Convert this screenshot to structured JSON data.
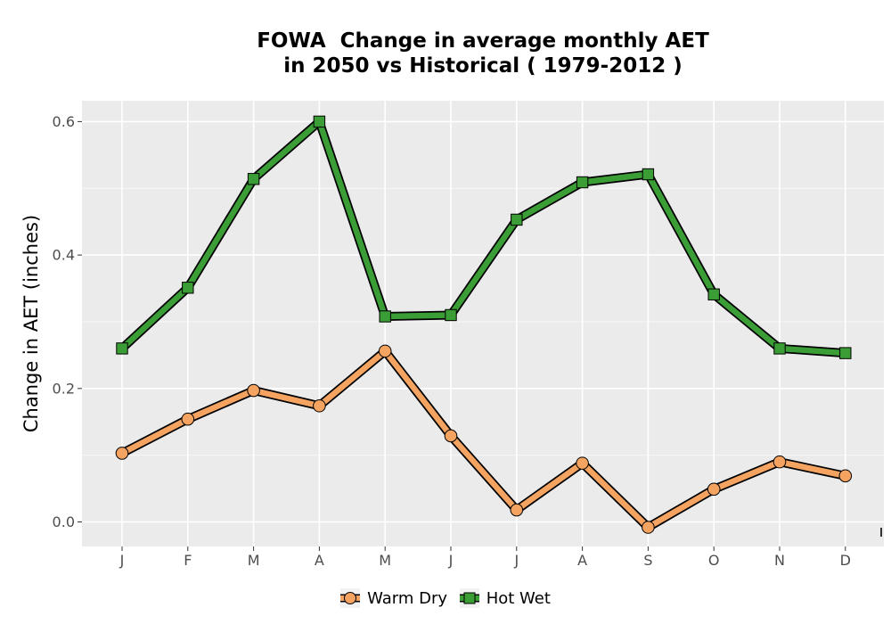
{
  "chart_data": {
    "type": "line",
    "title": [
      "FOWA  Change in average monthly AET",
      "in 2050 vs Historical ( 1979-2012 )"
    ],
    "xlabel": "",
    "ylabel": "Change in AET (inches)",
    "categories": [
      "J",
      "F",
      "M",
      "A",
      "M",
      "J",
      "J",
      "A",
      "S",
      "O",
      "N",
      "D"
    ],
    "ylim": [
      -0.04,
      0.63
    ],
    "yticks": [
      0.0,
      0.2,
      0.4,
      0.6
    ],
    "ytick_labels": [
      "0.0",
      "0.2",
      "0.4",
      "0.6"
    ],
    "grid": true,
    "legend_position": "bottom",
    "series": [
      {
        "name": "Warm Dry",
        "marker": "circle",
        "color": "#F4A460",
        "values": [
          0.103,
          0.154,
          0.197,
          0.174,
          0.256,
          0.129,
          0.018,
          0.088,
          -0.008,
          0.049,
          0.09,
          0.069
        ]
      },
      {
        "name": "Hot Wet",
        "marker": "square",
        "color": "#3A9D35",
        "values": [
          0.26,
          0.351,
          0.514,
          0.6,
          0.308,
          0.31,
          0.453,
          0.509,
          0.521,
          0.341,
          0.26,
          0.253
        ]
      }
    ]
  }
}
